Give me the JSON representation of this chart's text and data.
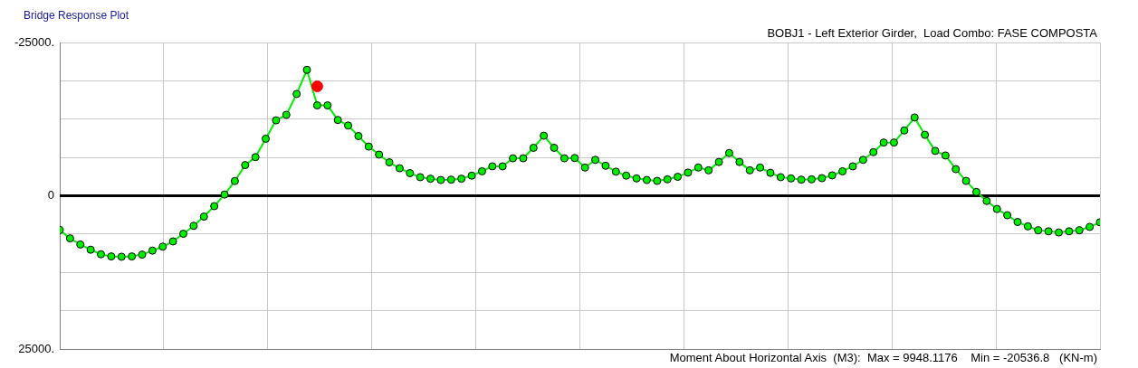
{
  "chart_data": {
    "type": "line",
    "title": "Bridge Response Plot",
    "subtitle": "BOBJ1 - Left Exterior Girder,  Load Combo: FASE COMPOSTA",
    "annotations": [
      "Moment About Horizontal Axis  (M3):  Max = 9948.1176    Min = -20536.8   (KN-m)"
    ],
    "categories": [
      null,
      null,
      null,
      null,
      null,
      null,
      null,
      null,
      null,
      null,
      null,
      null,
      null,
      null,
      null,
      null,
      null,
      null,
      null,
      null,
      null,
      null,
      null,
      null,
      null,
      null,
      null,
      null,
      null,
      null,
      null,
      null,
      null,
      null,
      null,
      null,
      null,
      null,
      null,
      null,
      null,
      null,
      null,
      null,
      null,
      null,
      null,
      null,
      null,
      null,
      null,
      null,
      null,
      null,
      null,
      null,
      null,
      null,
      null,
      null,
      null,
      null,
      null,
      null,
      null,
      null,
      null,
      null,
      null,
      null,
      null,
      null,
      null,
      null,
      null,
      null,
      null,
      null,
      null,
      null,
      null,
      null,
      null,
      null,
      null,
      null,
      null,
      null,
      null,
      null,
      null,
      null,
      null,
      null,
      null,
      null,
      null,
      null,
      null,
      null,
      null,
      null
    ],
    "ylim": [
      25000,
      -25000
    ],
    "yticks": [
      {
        "value": -25000,
        "label": "-25000."
      },
      {
        "value": -18750,
        "label": null
      },
      {
        "value": -12500,
        "label": null
      },
      {
        "value": -6250,
        "label": null
      },
      0,
      {
        "value": 6250,
        "label": null
      },
      {
        "value": 12500,
        "label": null
      },
      {
        "value": 18750,
        "label": null
      },
      {
        "value": 25000,
        "label": "25000."
      }
    ],
    "tick_labels": "y",
    "grid": true,
    "legend": false,
    "marker": "circle",
    "line_style": "solid",
    "ref_lines": [
      {
        "axis": "y",
        "value": 0,
        "color": "#000000"
      }
    ],
    "series": [
      {
        "color": "#00ee00",
        "values": [
          5600,
          6950,
          7950,
          8800,
          9550,
          9900,
          9948,
          9900,
          9600,
          8950,
          8300,
          7450,
          6200,
          4900,
          3400,
          1700,
          -200,
          -2400,
          -5000,
          -6300,
          -9300,
          -12300,
          -13200,
          -16600,
          -20536.8,
          -14740,
          -14740,
          -12360,
          -11450,
          -9740,
          -8020,
          -6710,
          -5450,
          -4490,
          -3690,
          -3030,
          -2780,
          -2570,
          -2630,
          -2780,
          -3280,
          -3990,
          -4800,
          -4800,
          -6110,
          -6110,
          -7820,
          -9790,
          -7820,
          -6110,
          -6160,
          -4600,
          -5860,
          -4900,
          -3930,
          -3280,
          -2830,
          -2570,
          -2420,
          -2680,
          -3090,
          -3780,
          -4600,
          -4150,
          -5510,
          -6960,
          -5510,
          -4150,
          -4600,
          -3740,
          -3030,
          -2830,
          -2630,
          -2680,
          -2870,
          -3330,
          -3990,
          -4800,
          -5860,
          -7110,
          -8680,
          -8680,
          -10650,
          -12770,
          -9940,
          -7320,
          -6570,
          -4340,
          -2420,
          -610,
          850,
          2160,
          3180,
          4280,
          4990,
          5640,
          5800,
          5990,
          5800,
          5640,
          5080,
          4330
        ]
      },
      {
        "type": "scatter",
        "color": "#ff0000",
        "values": [
          null,
          null,
          null,
          null,
          null,
          null,
          null,
          null,
          null,
          null,
          null,
          null,
          null,
          null,
          null,
          null,
          null,
          null,
          null,
          null,
          null,
          null,
          null,
          null,
          null,
          -17850,
          null,
          null,
          null,
          null,
          null,
          null,
          null,
          null,
          null,
          null,
          null,
          null,
          null,
          null,
          null,
          null,
          null,
          null,
          null,
          null,
          null,
          null,
          null,
          null,
          null,
          null,
          null,
          null,
          null,
          null,
          null,
          null,
          null,
          null,
          null,
          null,
          null,
          null,
          null,
          null,
          null,
          null,
          null,
          null,
          null,
          null,
          null,
          null,
          null,
          null,
          null,
          null,
          null,
          null,
          null,
          null,
          null,
          null,
          null,
          null,
          null,
          null,
          null,
          null,
          null,
          null,
          null,
          null,
          null,
          null,
          null,
          null,
          null,
          null,
          null,
          null
        ]
      }
    ]
  }
}
